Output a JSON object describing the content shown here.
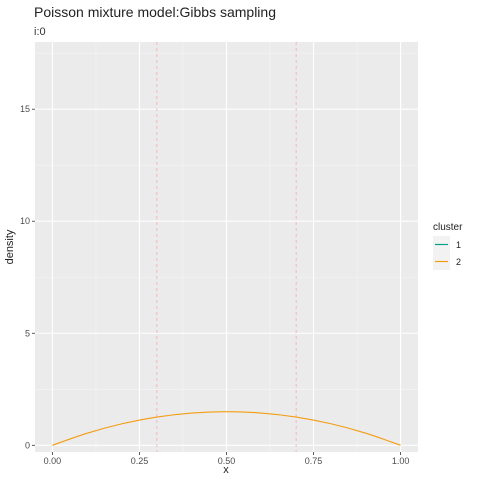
{
  "chart_data": {
    "type": "line",
    "title": "Poisson mixture model:Gibbs sampling",
    "subtitle": "i:0",
    "xlabel": "x",
    "ylabel": "density",
    "xlim": [
      -0.05,
      1.05
    ],
    "ylim": [
      -0.3,
      18.0
    ],
    "xticks": [
      0.0,
      0.25,
      0.5,
      0.75,
      1.0
    ],
    "xtick_labels": [
      "0.00",
      "0.25",
      "0.50",
      "0.75",
      "1.00"
    ],
    "yticks": [
      0,
      5,
      10,
      15
    ],
    "ytick_labels": [
      "0",
      "5",
      "10",
      "15"
    ],
    "grid": true,
    "legend_position": "right",
    "legend_title": "cluster",
    "vlines": {
      "x": [
        0.3,
        0.7
      ],
      "color": "#f4b6bb",
      "style": "dashed"
    },
    "series": [
      {
        "name": "1",
        "color": "#00a087",
        "x": [],
        "y": []
      },
      {
        "name": "2",
        "color": "#f39c12",
        "x": [
          0.0,
          0.1,
          0.2,
          0.3,
          0.4,
          0.5,
          0.6,
          0.7,
          0.8,
          0.9,
          1.0
        ],
        "y": [
          0.0,
          0.54,
          0.96,
          1.26,
          1.44,
          1.5,
          1.44,
          1.26,
          0.96,
          0.54,
          0.0
        ]
      }
    ]
  }
}
